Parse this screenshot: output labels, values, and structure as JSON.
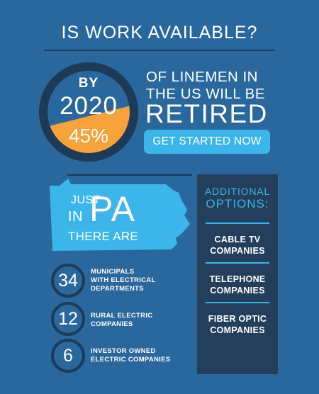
{
  "headline": "IS WORK AVAILABLE?",
  "gauge": {
    "by": "BY",
    "year": "2020",
    "percent": "45%",
    "fill_fraction": 0.45
  },
  "retirement": {
    "line1": "OF LINEMEN IN",
    "line2": "THE US WILL BE",
    "line3": "RETIRED"
  },
  "cta_label": "GET STARTED NOW",
  "pa": {
    "just": "JUST",
    "in": "IN",
    "state": "PA",
    "there_are": "THERE ARE"
  },
  "stats": [
    {
      "number": "34",
      "line1": "MUNICIPALS",
      "line2": "WITH ELECTRICAL",
      "line3": "DEPARTMENTS"
    },
    {
      "number": "12",
      "line1": "RURAL ELECTRIC",
      "line2": "COMPANIES"
    },
    {
      "number": "6",
      "line1": "INVESTOR OWNED",
      "line2": "ELECTRIC COMPANIES"
    }
  ],
  "options": {
    "heading_line1": "ADDITIONAL",
    "heading_line2": "OPTIONS:",
    "items": [
      {
        "line1": "CABLE TV",
        "line2": "COMPANIES"
      },
      {
        "line1": "TELEPHONE",
        "line2": "COMPANIES"
      },
      {
        "line1": "FIBER OPTIC",
        "line2": "COMPANIES"
      }
    ]
  },
  "colors": {
    "background": "#2a679c",
    "dark": "#1d3a56",
    "accent_blue": "#3cb6ea",
    "accent_orange": "#f7a23b",
    "panel": "#243f5c"
  }
}
